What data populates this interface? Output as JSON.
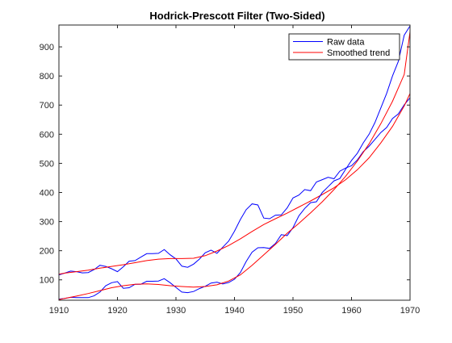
{
  "chart_data": {
    "type": "line",
    "title": "Hodrick-Prescott  Filter  (Two-Sided)",
    "xlabel": "",
    "ylabel": "",
    "xlim": [
      1910,
      1970
    ],
    "ylim": [
      30,
      975
    ],
    "xticks": [
      1910,
      1920,
      1930,
      1940,
      1950,
      1960,
      1970
    ],
    "yticks": [
      100,
      200,
      300,
      400,
      500,
      600,
      700,
      800,
      900
    ],
    "grid": false,
    "legend": {
      "location": "top-right",
      "entries": [
        "Raw data",
        "Smoothed trend"
      ]
    },
    "colors": {
      "raw": "#0000ff",
      "trend": "#ff0000",
      "axis": "#262626"
    },
    "series": [
      {
        "name": "Raw data",
        "group": "upper",
        "color": "#0000ff",
        "x": [
          1909,
          1910,
          1911,
          1912,
          1913,
          1914,
          1915,
          1916,
          1917,
          1918,
          1919,
          1920,
          1921,
          1922,
          1923,
          1924,
          1925,
          1926,
          1927,
          1928,
          1929,
          1930,
          1931,
          1932,
          1933,
          1934,
          1935,
          1936,
          1937,
          1938,
          1939,
          1940,
          1941,
          1942,
          1943,
          1944,
          1945,
          1946,
          1947,
          1948,
          1949,
          1950,
          1951,
          1952,
          1953,
          1954,
          1955,
          1956,
          1957,
          1958,
          1959,
          1960,
          1961,
          1962,
          1963,
          1964,
          1965,
          1966,
          1967,
          1968,
          1969,
          1970
        ],
        "y": [
          116,
          117,
          123,
          130,
          128,
          124,
          125,
          135,
          150,
          146,
          138,
          128,
          145,
          164,
          166,
          178,
          190,
          190,
          191,
          204,
          186,
          172,
          147,
          143,
          154,
          171,
          193,
          202,
          191,
          212,
          233,
          267,
          307,
          341,
          361,
          357,
          312,
          310,
          322,
          323,
          347,
          381,
          391,
          410,
          406,
          436,
          444,
          452,
          447,
          473,
          484,
          492,
          512,
          540,
          559,
          582,
          606,
          623,
          654,
          670,
          701,
          725
        ]
      },
      {
        "name": "Smoothed trend",
        "group": "upper",
        "color": "#ff0000",
        "x": [
          1909,
          1911,
          1913,
          1915,
          1917,
          1919,
          1921,
          1923,
          1925,
          1927,
          1929,
          1931,
          1933,
          1935,
          1937,
          1939,
          1941,
          1943,
          1945,
          1947,
          1949,
          1951,
          1953,
          1955,
          1957,
          1959,
          1961,
          1963,
          1965,
          1967,
          1969,
          1970
        ],
        "y": [
          116,
          123,
          128,
          133,
          140,
          146,
          152,
          159,
          166,
          171,
          173,
          173,
          174,
          183,
          199,
          218,
          241,
          266,
          290,
          310,
          329,
          350,
          371,
          393,
          416,
          444,
          478,
          519,
          570,
          627,
          697,
          740
        ]
      },
      {
        "name": "Raw data",
        "group": "lower",
        "color": "#0000ff",
        "x": [
          1909,
          1910,
          1911,
          1912,
          1913,
          1914,
          1915,
          1916,
          1917,
          1918,
          1919,
          1920,
          1921,
          1922,
          1923,
          1924,
          1925,
          1926,
          1927,
          1928,
          1929,
          1930,
          1931,
          1932,
          1933,
          1934,
          1935,
          1936,
          1937,
          1938,
          1939,
          1940,
          1941,
          1942,
          1943,
          1944,
          1945,
          1946,
          1947,
          1948,
          1949,
          1950,
          1951,
          1952,
          1953,
          1954,
          1955,
          1956,
          1957,
          1958,
          1959,
          1960,
          1961,
          1962,
          1963,
          1964,
          1965,
          1966,
          1967,
          1968,
          1969,
          1970
        ],
        "y": [
          33,
          34,
          36,
          40,
          39,
          39,
          39,
          45,
          58,
          80,
          90,
          94,
          71,
          73,
          85,
          85,
          95,
          95,
          96,
          104,
          90,
          74,
          58,
          56,
          60,
          70,
          78,
          89,
          92,
          86,
          91,
          102,
          125,
          163,
          195,
          210,
          211,
          208,
          225,
          255,
          252,
          279,
          320,
          345,
          365,
          368,
          400,
          420,
          440,
          448,
          480,
          510,
          535,
          570,
          600,
          640,
          690,
          740,
          800,
          850,
          940,
          972
        ]
      },
      {
        "name": "Smoothed trend",
        "group": "lower",
        "color": "#ff0000",
        "x": [
          1909,
          1911,
          1913,
          1915,
          1917,
          1919,
          1921,
          1923,
          1925,
          1927,
          1929,
          1931,
          1933,
          1935,
          1937,
          1939,
          1941,
          1943,
          1945,
          1947,
          1949,
          1951,
          1953,
          1955,
          1957,
          1959,
          1961,
          1963,
          1965,
          1967,
          1969,
          1970
        ],
        "y": [
          28,
          36,
          44,
          53,
          63,
          73,
          80,
          85,
          86,
          84,
          80,
          77,
          75,
          77,
          83,
          96,
          117,
          150,
          186,
          222,
          260,
          294,
          330,
          368,
          410,
          456,
          508,
          567,
          636,
          713,
          805,
          952
        ]
      }
    ]
  }
}
